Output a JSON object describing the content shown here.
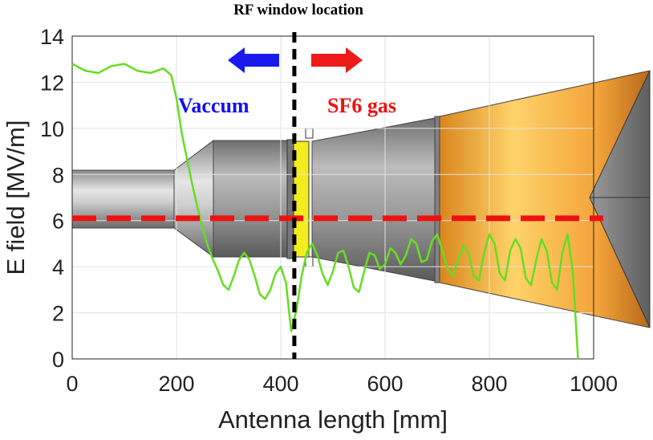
{
  "chart_data": {
    "type": "line",
    "title": "RF window location",
    "xlabel": "Antenna length [mm]",
    "ylabel": "E field [MV/m]",
    "xlim": [
      0,
      1000
    ],
    "ylim": [
      0,
      14
    ],
    "xticks": [
      0,
      200,
      400,
      600,
      800,
      1000
    ],
    "yticks": [
      0,
      2,
      4,
      6,
      8,
      10,
      12,
      14
    ],
    "grid": true,
    "series": [
      {
        "color": "#66dd22",
        "x": [
          0,
          25,
          50,
          75,
          100,
          125,
          150,
          175,
          190,
          200,
          210,
          220,
          230,
          240,
          250,
          260,
          270,
          280,
          290,
          300,
          310,
          320,
          330,
          340,
          350,
          360,
          370,
          380,
          390,
          400,
          410,
          420,
          430,
          440,
          450,
          460,
          470,
          480,
          490,
          500,
          510,
          520,
          530,
          540,
          550,
          560,
          570,
          580,
          590,
          600,
          610,
          620,
          630,
          640,
          650,
          660,
          670,
          680,
          690,
          700,
          710,
          720,
          730,
          740,
          750,
          760,
          770,
          780,
          790,
          800,
          810,
          820,
          830,
          840,
          850,
          860,
          870,
          880,
          890,
          900,
          910,
          920,
          930,
          940,
          950,
          960,
          970
        ],
        "y": [
          12.8,
          12.5,
          12.4,
          12.7,
          12.8,
          12.5,
          12.4,
          12.6,
          12.3,
          11.3,
          9.8,
          8.7,
          7.6,
          6.6,
          5.7,
          4.9,
          4.3,
          3.8,
          3.2,
          3.0,
          3.6,
          4.3,
          4.6,
          4.3,
          3.6,
          2.8,
          2.6,
          3.0,
          3.7,
          4.0,
          3.3,
          1.2,
          2.1,
          3.6,
          4.6,
          5.0,
          4.5,
          3.7,
          3.2,
          3.8,
          4.6,
          4.7,
          4.0,
          3.1,
          2.9,
          3.8,
          4.6,
          4.5,
          3.9,
          4.1,
          4.8,
          4.6,
          4.1,
          4.5,
          5.2,
          5.0,
          4.2,
          4.3,
          5.1,
          5.4,
          4.7,
          3.9,
          3.6,
          4.3,
          4.9,
          4.6,
          3.6,
          3.4,
          4.6,
          5.4,
          5.0,
          3.7,
          3.4,
          4.7,
          5.2,
          4.8,
          3.5,
          3.2,
          4.3,
          5.2,
          4.7,
          3.3,
          3.0,
          4.6,
          5.4,
          3.8,
          0.0
        ]
      }
    ],
    "annotations": {
      "vacuum_label": "Vaccum",
      "vacuum_color": "#1010ee",
      "gas_label": "SF6 gas",
      "gas_color": "#ee1010",
      "window_x": 426,
      "reference_y": 6.1,
      "reference_color": "#ee1111",
      "window_line_color": "#000000"
    }
  }
}
